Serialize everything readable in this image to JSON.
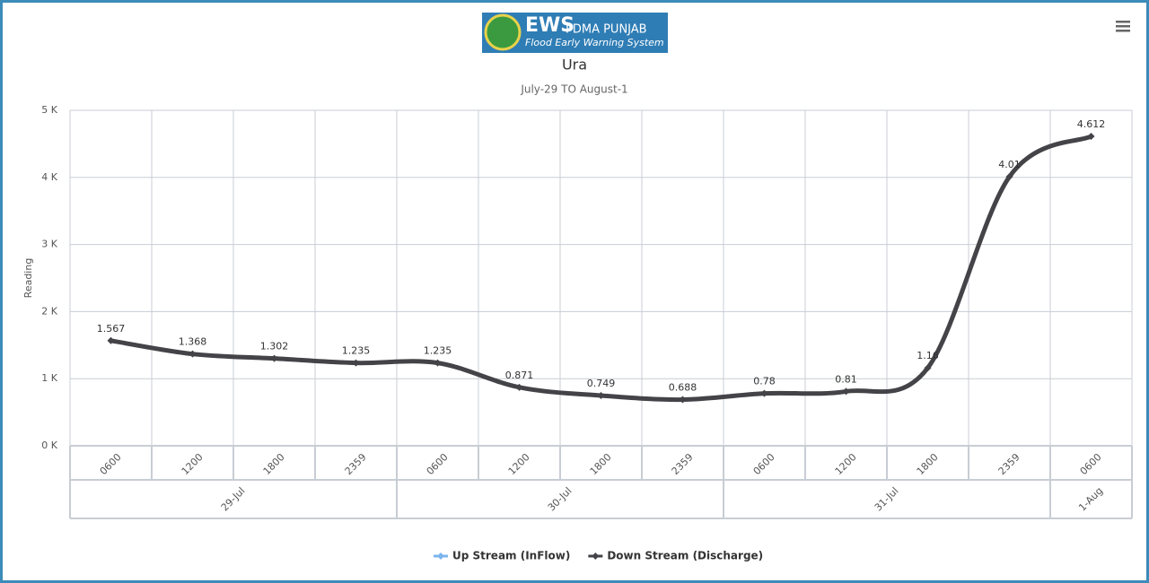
{
  "header": {
    "logo_title": "EWS",
    "logo_org": "PDMA PUNJAB",
    "logo_subtitle": "Flood Early Warning System"
  },
  "chart_data": {
    "type": "line",
    "title": "Ura",
    "subtitle": "July-29 TO August-1",
    "y_label": "Reading",
    "categories": [
      "0600",
      "1200",
      "1800",
      "2359",
      "0600",
      "1200",
      "1800",
      "2359",
      "0600",
      "1200",
      "1800",
      "2359",
      "0600"
    ],
    "x_groups": [
      "29-Jul",
      "29-Jul",
      "29-Jul",
      "29-Jul",
      "30-Jul",
      "30-Jul",
      "30-Jul",
      "30-Jul",
      "31-Jul",
      "31-Jul",
      "31-Jul",
      "31-Jul",
      "1-Aug"
    ],
    "series": [
      {
        "name": "Up Stream (InFlow)",
        "color": "#7cb5ec",
        "values": [
          null,
          null,
          null,
          null,
          null,
          null,
          null,
          null,
          null,
          null,
          null,
          null,
          null
        ]
      },
      {
        "name": "Down Stream (Discharge)",
        "color": "#434348",
        "values": [
          1.567,
          1.368,
          1.302,
          1.235,
          1.235,
          0.871,
          0.749,
          0.688,
          0.78,
          0.81,
          1.16,
          4.01,
          4.612
        ]
      }
    ],
    "ylim": [
      0,
      5
    ],
    "yticks": [
      {
        "value": 0,
        "label": "0 K"
      },
      {
        "value": 1,
        "label": "1 K"
      },
      {
        "value": 2,
        "label": "2 K"
      },
      {
        "value": 3,
        "label": "3 K"
      },
      {
        "value": 4,
        "label": "4 K"
      },
      {
        "value": 5,
        "label": "5 K"
      }
    ],
    "grid": true,
    "legend": "bottom"
  }
}
